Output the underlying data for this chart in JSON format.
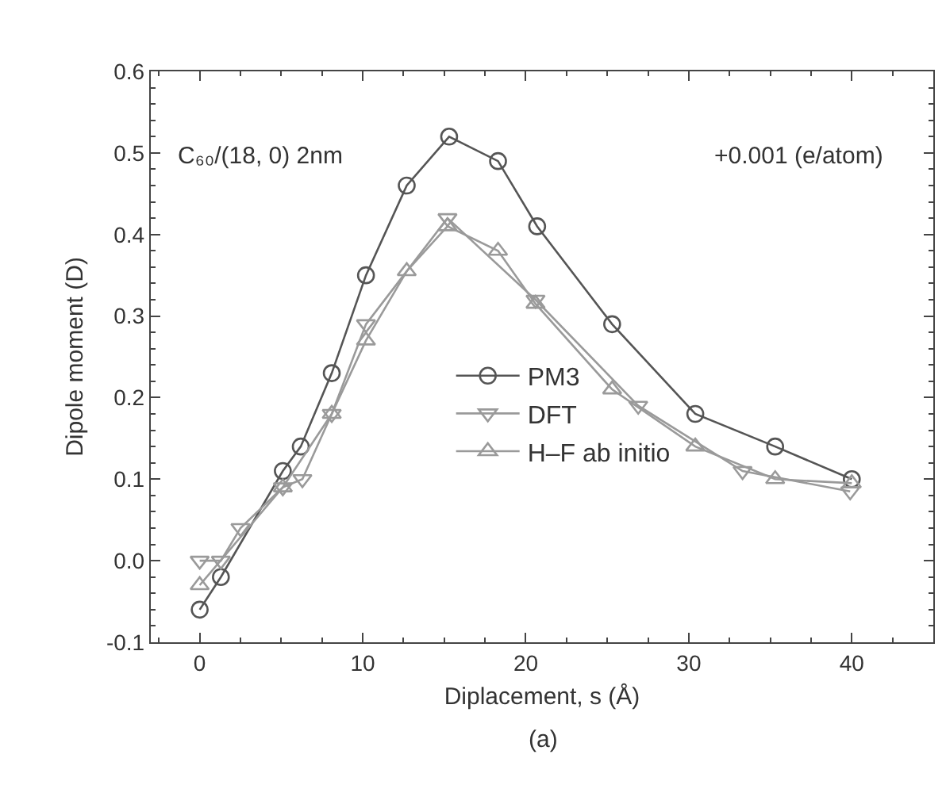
{
  "chart_data": {
    "type": "line",
    "xlabel": "Diplacement, s (Å)",
    "ylabel": "Dipole moment (D)",
    "annotations": [
      "C₆₀/(18, 0) 2nm",
      "+0.001 (e/atom)",
      "(a)"
    ],
    "xlim": [
      -3,
      45
    ],
    "xticks": [
      0,
      10,
      20,
      30,
      40
    ],
    "ylim": [
      -0.1,
      0.6
    ],
    "yticks": [
      -0.1,
      {
        "value": 0,
        "label": "0.0"
      },
      0.1,
      0.2,
      0.3,
      0.4,
      0.5,
      0.6
    ],
    "grid": false,
    "legend": "center",
    "series": [
      {
        "name": "PM3",
        "color": "#555555",
        "marker": "circle",
        "x": [
          0,
          1.3,
          5.1,
          6.2,
          8.1,
          10.2,
          12.7,
          15.3,
          18.3,
          20.7,
          25.3,
          30.4,
          35.3,
          40
        ],
        "values": [
          -0.06,
          -0.02,
          0.11,
          0.14,
          0.23,
          0.35,
          0.46,
          0.52,
          0.49,
          0.41,
          0.29,
          0.18,
          0.14,
          0.1
        ]
      },
      {
        "name": "DFT",
        "color": "#9a9a9a",
        "marker": "triangle-down",
        "x": [
          0,
          1.3,
          2.5,
          5.1,
          6.3,
          8.1,
          10.2,
          15.2,
          20.6,
          26.9,
          33.3,
          39.9
        ],
        "values": [
          0.0,
          0.0,
          0.04,
          0.09,
          0.1,
          0.18,
          0.29,
          0.42,
          0.32,
          0.19,
          0.11,
          0.085
        ]
      },
      {
        "name": "H–F ab initio",
        "color": "#9a9a9a",
        "marker": "triangle",
        "x": [
          0,
          5.1,
          8.1,
          10.2,
          12.7,
          15.2,
          18.3,
          20.6,
          25.3,
          30.4,
          35.3,
          40
        ],
        "values": [
          -0.03,
          0.09,
          0.18,
          0.27,
          0.355,
          0.41,
          0.38,
          0.315,
          0.21,
          0.14,
          0.1,
          0.095
        ]
      }
    ]
  }
}
